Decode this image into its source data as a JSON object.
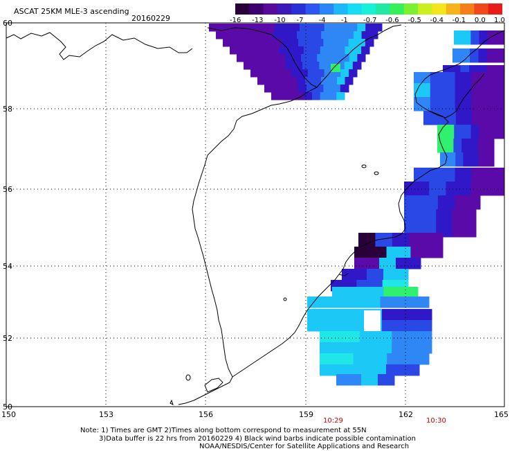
{
  "header": {
    "title": "ASCAT 25KM MLE-3 ascending",
    "date": "20160229"
  },
  "colorbar": {
    "labels": [
      "-16",
      "-13",
      "-10",
      "-7",
      "-4",
      "-1",
      "-0.7",
      "-0.6",
      "-0.5",
      "-0.4",
      "-0.1",
      "0.0",
      "1.0"
    ],
    "colors": [
      "#2a003a",
      "#3c0070",
      "#5a0a9a",
      "#3a1ab8",
      "#2a30d8",
      "#2e55f0",
      "#2a86f6",
      "#1cb8f8",
      "#16ddf4",
      "#18f0d8",
      "#22e8a0",
      "#36f05a",
      "#7af030",
      "#c8f020",
      "#f5e61c",
      "#f7b41a",
      "#f57e18",
      "#f0481a",
      "#e81a1a"
    ]
  },
  "map": {
    "lat_labels": [
      "60",
      "58",
      "56",
      "54",
      "52",
      "50"
    ],
    "lon_labels": [
      "150",
      "153",
      "156",
      "159",
      "162",
      "165"
    ],
    "time_labels": [
      "10:29",
      "10:30"
    ],
    "swath_colors": {
      "deep": "#2a003a",
      "purple": "#5a0aa8",
      "indigo": "#3018c8",
      "blue": "#2a48e6",
      "lightblue": "#2f86f5",
      "cyan": "#1cc8f6",
      "aqua": "#20e6e6",
      "green": "#30f070"
    }
  },
  "notes": {
    "line1": "Note: 1) Times are GMT 2)Times along bottom correspond to measurement at 55N",
    "line2": "3)Data buffer is 22 hrs from 20160229 4) Black wind barbs indicate possible contamination",
    "line3": "NOAA/NESDIS/Center for Satellite Applications and Research"
  }
}
